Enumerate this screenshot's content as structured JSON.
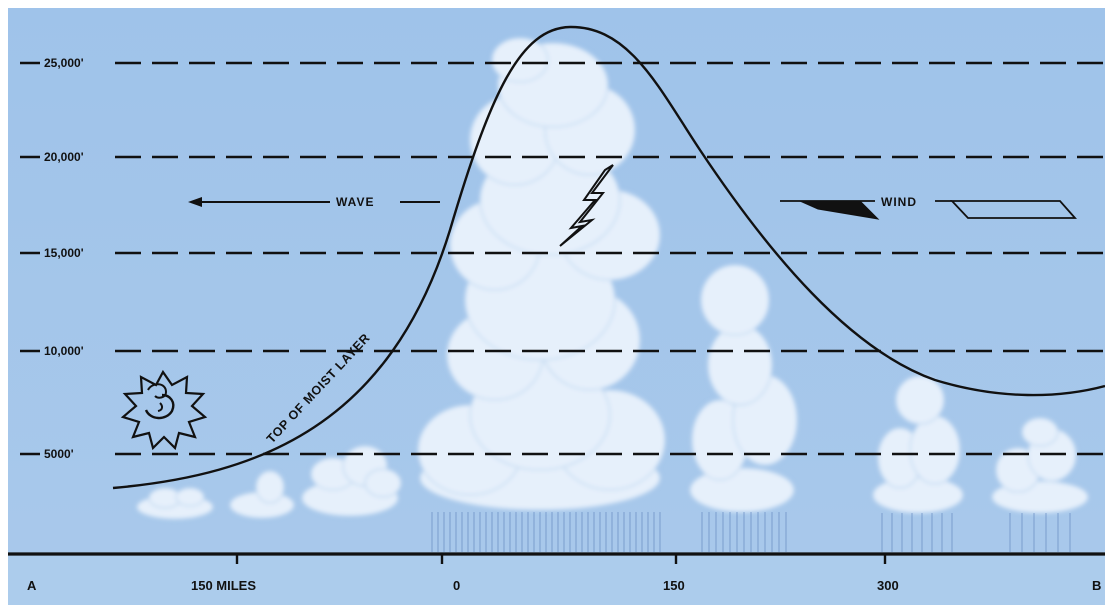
{
  "altitude_lines": [
    {
      "label": "25,000'"
    },
    {
      "label": "20,000'"
    },
    {
      "label": "15,000'"
    },
    {
      "label": "10,000'"
    },
    {
      "label": "5000'"
    }
  ],
  "distance_axis": {
    "start_label": "A",
    "end_label": "B",
    "ticks": [
      {
        "label": "150 MILES"
      },
      {
        "label": "0"
      },
      {
        "label": "150"
      },
      {
        "label": "300"
      }
    ]
  },
  "annotations": {
    "wave": "WAVE",
    "wind": "WIND",
    "moist_layer": "TOP OF MOIST LAYER"
  },
  "colors": {
    "background": "#a9c9eb",
    "cloud": "#e6f0fb",
    "ink": "#111111"
  },
  "icons": [
    "sun-icon",
    "lightning-icon",
    "wind-barb-icon",
    "arrow-left-icon"
  ]
}
